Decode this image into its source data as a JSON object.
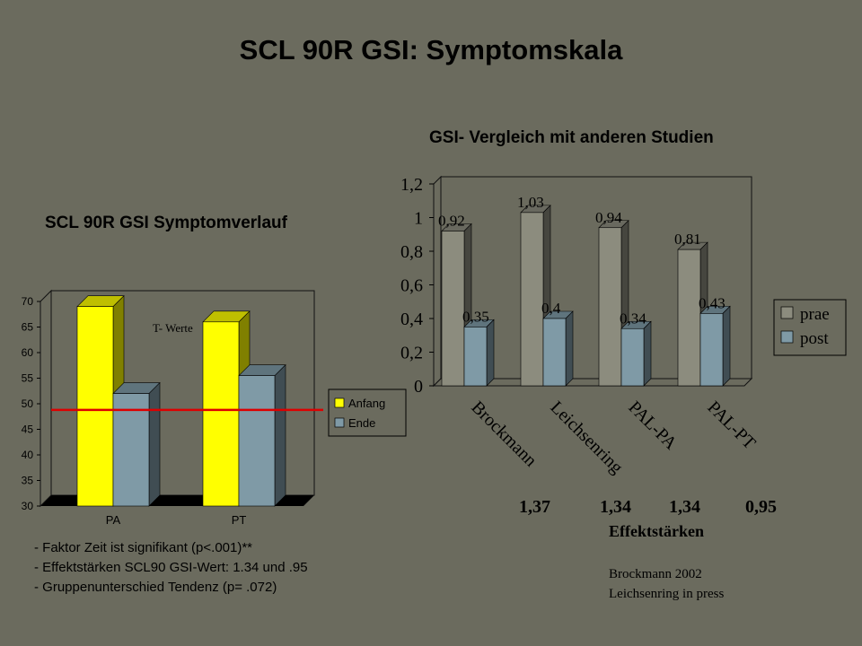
{
  "title": "SCL 90R GSI: Symptomskala",
  "left_title": "SCL 90R GSI Symptomverlauf",
  "right_title": "GSI- Vergleich mit anderen Studien",
  "notes": [
    "- Faktor Zeit ist signifikant (p<.001)**",
    "- Effektstärken SCL90 GSI-Wert: 1.34 und .95",
    "- Gruppenunterschied Tendenz (p= .072)"
  ],
  "effect_sizes": [
    "1,37",
    "1,34",
    "1,34",
    "0,95"
  ],
  "effect_label": "Effektstärken",
  "references": [
    "Brockmann 2002",
    "Leichsenring in press"
  ],
  "chart_data": [
    {
      "type": "bar",
      "title": "SCL 90R GSI Symptomverlauf",
      "categories": [
        "PA",
        "PT"
      ],
      "series": [
        {
          "name": "Anfang",
          "values": [
            69,
            66
          ],
          "color": "#ffff00"
        },
        {
          "name": "Ende",
          "values": [
            52,
            55.5
          ],
          "color": "#7f9aa6"
        }
      ],
      "ylim": [
        30,
        70
      ],
      "yticks": [
        "30",
        "35",
        "40",
        "45",
        "50",
        "55",
        "60",
        "65",
        "70"
      ],
      "reference_line": {
        "value": 48.8,
        "color": "#dd0000"
      },
      "annotation": "T- Werte",
      "legend": "right",
      "grid": false
    },
    {
      "type": "bar",
      "title": "GSI- Vergleich mit anderen Studien",
      "categories": [
        "Brockmann",
        "Leichsenring",
        "PAL-PA",
        "PAL-PT"
      ],
      "series": [
        {
          "name": "prae",
          "values": [
            0.92,
            1.03,
            0.94,
            0.81
          ],
          "labels": [
            "0,92",
            "1,03",
            "0,94",
            "0,81"
          ],
          "color": "#8c8c7e"
        },
        {
          "name": "post",
          "values": [
            0.35,
            0.4,
            0.34,
            0.43
          ],
          "labels": [
            "0,35",
            "0,4",
            "0,34",
            "0,43"
          ],
          "color": "#7f9aa6"
        }
      ],
      "ylim": [
        0,
        1.2
      ],
      "yticks": [
        "0",
        "0,2",
        "0,4",
        "0,6",
        "0,8",
        "1",
        "1,2"
      ],
      "legend": "right",
      "grid": false
    }
  ]
}
